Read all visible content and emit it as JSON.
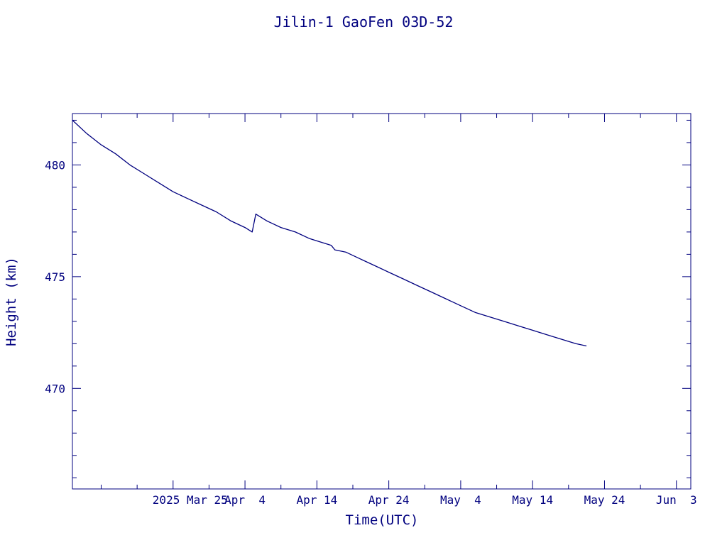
{
  "chart_data": {
    "type": "line",
    "title": "Jilin-1 GaoFen 03D-52",
    "xlabel": "Time(UTC)",
    "ylabel": "Height (km)",
    "color": "#00007f",
    "xlim": [
      "2025-03-11",
      "2025-06-05"
    ],
    "ylim": [
      465.5,
      482.3
    ],
    "x_ticks": [
      {
        "date": "2025-03-25",
        "label": "2025 Mar 25"
      },
      {
        "date": "2025-04-04",
        "label": "Apr  4"
      },
      {
        "date": "2025-04-14",
        "label": "Apr 14"
      },
      {
        "date": "2025-04-24",
        "label": "Apr 24"
      },
      {
        "date": "2025-05-04",
        "label": "May  4"
      },
      {
        "date": "2025-05-14",
        "label": "May 14"
      },
      {
        "date": "2025-05-24",
        "label": "May 24"
      },
      {
        "date": "2025-06-03",
        "label": "Jun  3"
      }
    ],
    "x_minor_step_days": 5,
    "y_ticks": [
      470,
      475,
      480
    ],
    "y_minor_step": 1,
    "series": [
      {
        "points": [
          [
            "2025-03-11 00:00",
            482.0
          ],
          [
            "2025-03-13 00:00",
            481.4
          ],
          [
            "2025-03-15 00:00",
            480.9
          ],
          [
            "2025-03-17 00:00",
            480.5
          ],
          [
            "2025-03-19 00:00",
            480.0
          ],
          [
            "2025-03-21 00:00",
            479.6
          ],
          [
            "2025-03-23 00:00",
            479.2
          ],
          [
            "2025-03-25 00:00",
            478.8
          ],
          [
            "2025-03-27 00:00",
            478.5
          ],
          [
            "2025-03-29 00:00",
            478.2
          ],
          [
            "2025-03-31 00:00",
            477.9
          ],
          [
            "2025-04-02 00:00",
            477.5
          ],
          [
            "2025-04-04 00:00",
            477.2
          ],
          [
            "2025-04-05 00:00",
            477.0
          ],
          [
            "2025-04-05 12:00",
            477.8
          ],
          [
            "2025-04-07 00:00",
            477.5
          ],
          [
            "2025-04-09 00:00",
            477.2
          ],
          [
            "2025-04-11 00:00",
            477.0
          ],
          [
            "2025-04-13 00:00",
            476.7
          ],
          [
            "2025-04-15 00:00",
            476.5
          ],
          [
            "2025-04-16 00:00",
            476.4
          ],
          [
            "2025-04-16 12:00",
            476.2
          ],
          [
            "2025-04-18 00:00",
            476.1
          ],
          [
            "2025-04-20 00:00",
            475.8
          ],
          [
            "2025-04-22 00:00",
            475.5
          ],
          [
            "2025-04-24 00:00",
            475.2
          ],
          [
            "2025-04-26 00:00",
            474.9
          ],
          [
            "2025-04-28 00:00",
            474.6
          ],
          [
            "2025-04-30 00:00",
            474.3
          ],
          [
            "2025-05-02 00:00",
            474.0
          ],
          [
            "2025-05-04 00:00",
            473.7
          ],
          [
            "2025-05-06 00:00",
            473.4
          ],
          [
            "2025-05-08 00:00",
            473.2
          ],
          [
            "2025-05-10 00:00",
            473.0
          ],
          [
            "2025-05-12 00:00",
            472.8
          ],
          [
            "2025-05-14 00:00",
            472.6
          ],
          [
            "2025-05-16 00:00",
            472.4
          ],
          [
            "2025-05-18 00:00",
            472.2
          ],
          [
            "2025-05-20 00:00",
            472.0
          ],
          [
            "2025-05-21 12:00",
            471.9
          ]
        ]
      }
    ],
    "grid": false,
    "legend": "none"
  }
}
